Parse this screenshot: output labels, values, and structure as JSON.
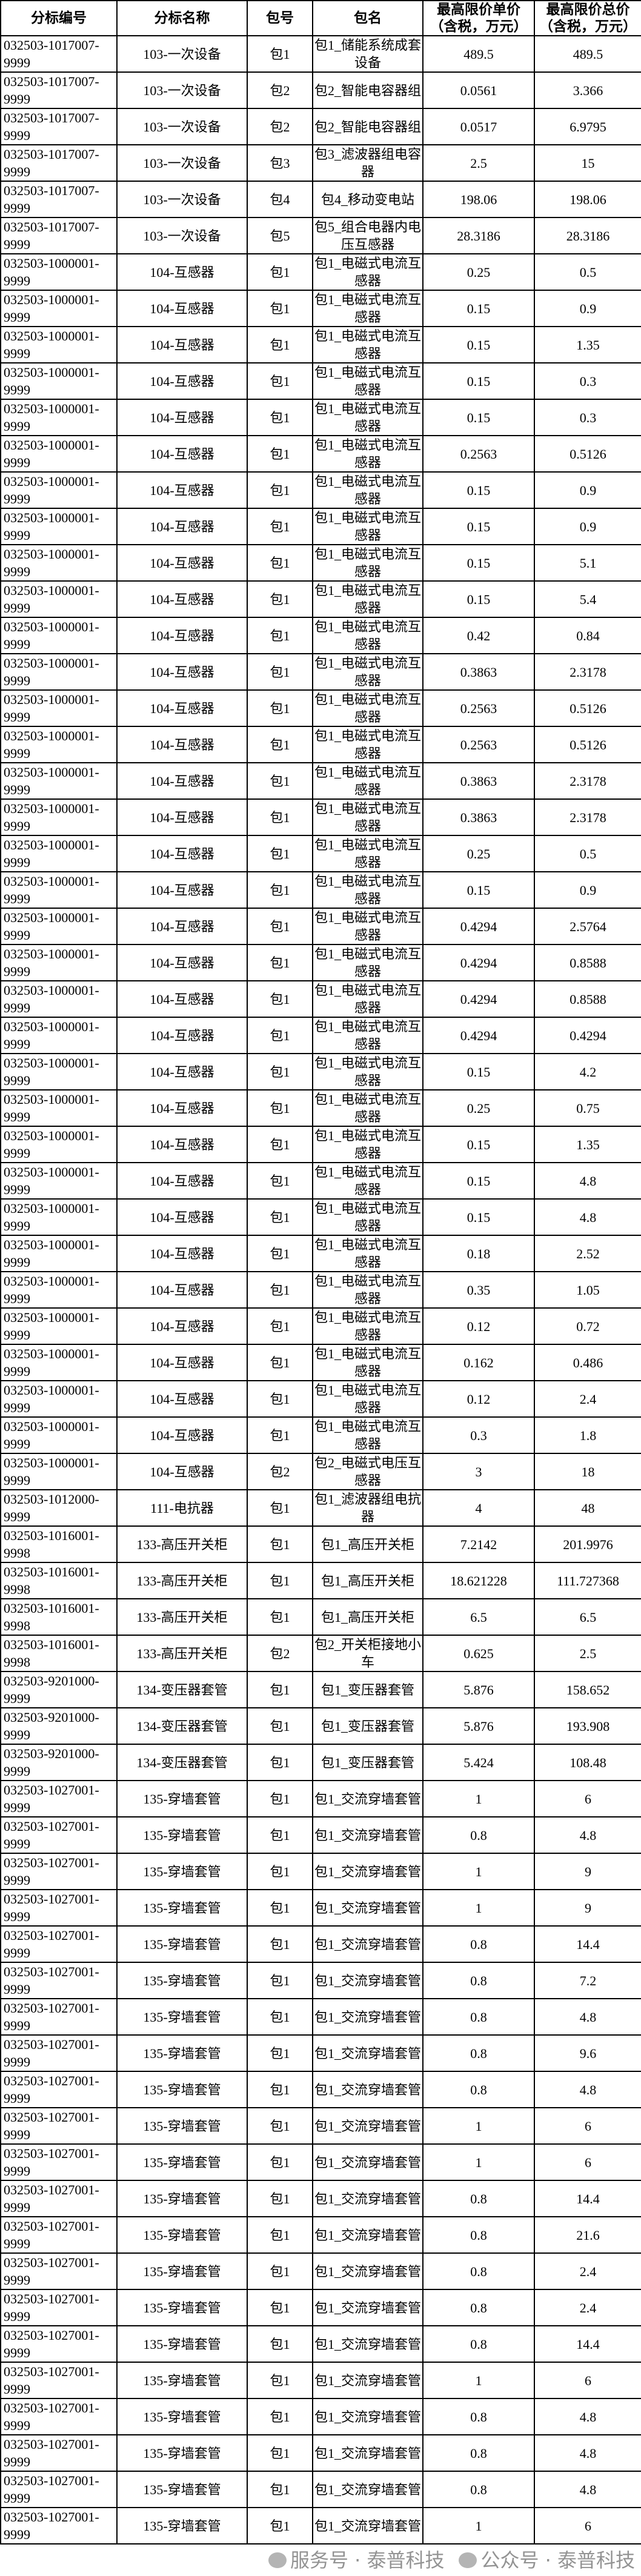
{
  "table": {
    "headers": [
      "分标编号",
      "分标名称",
      "包号",
      "包名",
      "最高限价单价（含税，万元）",
      "最高限价总价（含税，万元）"
    ],
    "rows": [
      [
        "032503-1017007-9999",
        "103-一次设备",
        "包1",
        "包1_储能系统成套设备",
        "489.5",
        "489.5"
      ],
      [
        "032503-1017007-9999",
        "103-一次设备",
        "包2",
        "包2_智能电容器组",
        "0.0561",
        "3.366"
      ],
      [
        "032503-1017007-9999",
        "103-一次设备",
        "包2",
        "包2_智能电容器组",
        "0.0517",
        "6.9795"
      ],
      [
        "032503-1017007-9999",
        "103-一次设备",
        "包3",
        "包3_滤波器组电容器",
        "2.5",
        "15"
      ],
      [
        "032503-1017007-9999",
        "103-一次设备",
        "包4",
        "包4_移动变电站",
        "198.06",
        "198.06"
      ],
      [
        "032503-1017007-9999",
        "103-一次设备",
        "包5",
        "包5_组合电器内电压互感器",
        "28.3186",
        "28.3186"
      ],
      [
        "032503-1000001-9999",
        "104-互感器",
        "包1",
        "包1_电磁式电流互感器",
        "0.25",
        "0.5"
      ],
      [
        "032503-1000001-9999",
        "104-互感器",
        "包1",
        "包1_电磁式电流互感器",
        "0.15",
        "0.9"
      ],
      [
        "032503-1000001-9999",
        "104-互感器",
        "包1",
        "包1_电磁式电流互感器",
        "0.15",
        "1.35"
      ],
      [
        "032503-1000001-9999",
        "104-互感器",
        "包1",
        "包1_电磁式电流互感器",
        "0.15",
        "0.3"
      ],
      [
        "032503-1000001-9999",
        "104-互感器",
        "包1",
        "包1_电磁式电流互感器",
        "0.15",
        "0.3"
      ],
      [
        "032503-1000001-9999",
        "104-互感器",
        "包1",
        "包1_电磁式电流互感器",
        "0.2563",
        "0.5126"
      ],
      [
        "032503-1000001-9999",
        "104-互感器",
        "包1",
        "包1_电磁式电流互感器",
        "0.15",
        "0.9"
      ],
      [
        "032503-1000001-9999",
        "104-互感器",
        "包1",
        "包1_电磁式电流互感器",
        "0.15",
        "0.9"
      ],
      [
        "032503-1000001-9999",
        "104-互感器",
        "包1",
        "包1_电磁式电流互感器",
        "0.15",
        "5.1"
      ],
      [
        "032503-1000001-9999",
        "104-互感器",
        "包1",
        "包1_电磁式电流互感器",
        "0.15",
        "5.4"
      ],
      [
        "032503-1000001-9999",
        "104-互感器",
        "包1",
        "包1_电磁式电流互感器",
        "0.42",
        "0.84"
      ],
      [
        "032503-1000001-9999",
        "104-互感器",
        "包1",
        "包1_电磁式电流互感器",
        "0.3863",
        "2.3178"
      ],
      [
        "032503-1000001-9999",
        "104-互感器",
        "包1",
        "包1_电磁式电流互感器",
        "0.2563",
        "0.5126"
      ],
      [
        "032503-1000001-9999",
        "104-互感器",
        "包1",
        "包1_电磁式电流互感器",
        "0.2563",
        "0.5126"
      ],
      [
        "032503-1000001-9999",
        "104-互感器",
        "包1",
        "包1_电磁式电流互感器",
        "0.3863",
        "2.3178"
      ],
      [
        "032503-1000001-9999",
        "104-互感器",
        "包1",
        "包1_电磁式电流互感器",
        "0.3863",
        "2.3178"
      ],
      [
        "032503-1000001-9999",
        "104-互感器",
        "包1",
        "包1_电磁式电流互感器",
        "0.25",
        "0.5"
      ],
      [
        "032503-1000001-9999",
        "104-互感器",
        "包1",
        "包1_电磁式电流互感器",
        "0.15",
        "0.9"
      ],
      [
        "032503-1000001-9999",
        "104-互感器",
        "包1",
        "包1_电磁式电流互感器",
        "0.4294",
        "2.5764"
      ],
      [
        "032503-1000001-9999",
        "104-互感器",
        "包1",
        "包1_电磁式电流互感器",
        "0.4294",
        "0.8588"
      ],
      [
        "032503-1000001-9999",
        "104-互感器",
        "包1",
        "包1_电磁式电流互感器",
        "0.4294",
        "0.8588"
      ],
      [
        "032503-1000001-9999",
        "104-互感器",
        "包1",
        "包1_电磁式电流互感器",
        "0.4294",
        "0.4294"
      ],
      [
        "032503-1000001-9999",
        "104-互感器",
        "包1",
        "包1_电磁式电流互感器",
        "0.15",
        "4.2"
      ],
      [
        "032503-1000001-9999",
        "104-互感器",
        "包1",
        "包1_电磁式电流互感器",
        "0.25",
        "0.75"
      ],
      [
        "032503-1000001-9999",
        "104-互感器",
        "包1",
        "包1_电磁式电流互感器",
        "0.15",
        "1.35"
      ],
      [
        "032503-1000001-9999",
        "104-互感器",
        "包1",
        "包1_电磁式电流互感器",
        "0.15",
        "4.8"
      ],
      [
        "032503-1000001-9999",
        "104-互感器",
        "包1",
        "包1_电磁式电流互感器",
        "0.15",
        "4.8"
      ],
      [
        "032503-1000001-9999",
        "104-互感器",
        "包1",
        "包1_电磁式电流互感器",
        "0.18",
        "2.52"
      ],
      [
        "032503-1000001-9999",
        "104-互感器",
        "包1",
        "包1_电磁式电流互感器",
        "0.35",
        "1.05"
      ],
      [
        "032503-1000001-9999",
        "104-互感器",
        "包1",
        "包1_电磁式电流互感器",
        "0.12",
        "0.72"
      ],
      [
        "032503-1000001-9999",
        "104-互感器",
        "包1",
        "包1_电磁式电流互感器",
        "0.162",
        "0.486"
      ],
      [
        "032503-1000001-9999",
        "104-互感器",
        "包1",
        "包1_电磁式电流互感器",
        "0.12",
        "2.4"
      ],
      [
        "032503-1000001-9999",
        "104-互感器",
        "包1",
        "包1_电磁式电流互感器",
        "0.3",
        "1.8"
      ],
      [
        "032503-1000001-9999",
        "104-互感器",
        "包2",
        "包2_电磁式电压互感器",
        "3",
        "18"
      ],
      [
        "032503-1012000-9999",
        "111-电抗器",
        "包1",
        "包1_滤波器组电抗器",
        "4",
        "48"
      ],
      [
        "032503-1016001-9998",
        "133-高压开关柜",
        "包1",
        "包1_高压开关柜",
        "7.2142",
        "201.9976"
      ],
      [
        "032503-1016001-9998",
        "133-高压开关柜",
        "包1",
        "包1_高压开关柜",
        "18.621228",
        "111.727368"
      ],
      [
        "032503-1016001-9998",
        "133-高压开关柜",
        "包1",
        "包1_高压开关柜",
        "6.5",
        "6.5"
      ],
      [
        "032503-1016001-9998",
        "133-高压开关柜",
        "包2",
        "包2_开关柜接地小车",
        "0.625",
        "2.5"
      ],
      [
        "032503-9201000-9999",
        "134-变压器套管",
        "包1",
        "包1_变压器套管",
        "5.876",
        "158.652"
      ],
      [
        "032503-9201000-9999",
        "134-变压器套管",
        "包1",
        "包1_变压器套管",
        "5.876",
        "193.908"
      ],
      [
        "032503-9201000-9999",
        "134-变压器套管",
        "包1",
        "包1_变压器套管",
        "5.424",
        "108.48"
      ],
      [
        "032503-1027001-9999",
        "135-穿墙套管",
        "包1",
        "包1_交流穿墙套管",
        "1",
        "6"
      ],
      [
        "032503-1027001-9999",
        "135-穿墙套管",
        "包1",
        "包1_交流穿墙套管",
        "0.8",
        "4.8"
      ],
      [
        "032503-1027001-9999",
        "135-穿墙套管",
        "包1",
        "包1_交流穿墙套管",
        "1",
        "9"
      ],
      [
        "032503-1027001-9999",
        "135-穿墙套管",
        "包1",
        "包1_交流穿墙套管",
        "1",
        "9"
      ],
      [
        "032503-1027001-9999",
        "135-穿墙套管",
        "包1",
        "包1_交流穿墙套管",
        "0.8",
        "14.4"
      ],
      [
        "032503-1027001-9999",
        "135-穿墙套管",
        "包1",
        "包1_交流穿墙套管",
        "0.8",
        "7.2"
      ],
      [
        "032503-1027001-9999",
        "135-穿墙套管",
        "包1",
        "包1_交流穿墙套管",
        "0.8",
        "4.8"
      ],
      [
        "032503-1027001-9999",
        "135-穿墙套管",
        "包1",
        "包1_交流穿墙套管",
        "0.8",
        "9.6"
      ],
      [
        "032503-1027001-9999",
        "135-穿墙套管",
        "包1",
        "包1_交流穿墙套管",
        "0.8",
        "4.8"
      ],
      [
        "032503-1027001-9999",
        "135-穿墙套管",
        "包1",
        "包1_交流穿墙套管",
        "1",
        "6"
      ],
      [
        "032503-1027001-9999",
        "135-穿墙套管",
        "包1",
        "包1_交流穿墙套管",
        "1",
        "6"
      ],
      [
        "032503-1027001-9999",
        "135-穿墙套管",
        "包1",
        "包1_交流穿墙套管",
        "0.8",
        "14.4"
      ],
      [
        "032503-1027001-9999",
        "135-穿墙套管",
        "包1",
        "包1_交流穿墙套管",
        "0.8",
        "21.6"
      ],
      [
        "032503-1027001-9999",
        "135-穿墙套管",
        "包1",
        "包1_交流穿墙套管",
        "0.8",
        "2.4"
      ],
      [
        "032503-1027001-9999",
        "135-穿墙套管",
        "包1",
        "包1_交流穿墙套管",
        "0.8",
        "2.4"
      ],
      [
        "032503-1027001-9999",
        "135-穿墙套管",
        "包1",
        "包1_交流穿墙套管",
        "0.8",
        "14.4"
      ],
      [
        "032503-1027001-9999",
        "135-穿墙套管",
        "包1",
        "包1_交流穿墙套管",
        "1",
        "6"
      ],
      [
        "032503-1027001-9999",
        "135-穿墙套管",
        "包1",
        "包1_交流穿墙套管",
        "0.8",
        "4.8"
      ],
      [
        "032503-1027001-9999",
        "135-穿墙套管",
        "包1",
        "包1_交流穿墙套管",
        "0.8",
        "4.8"
      ],
      [
        "032503-1027001-9999",
        "135-穿墙套管",
        "包1",
        "包1_交流穿墙套管",
        "0.8",
        "4.8"
      ],
      [
        "032503-1027001-9999",
        "135-穿墙套管",
        "包1",
        "包1_交流穿墙套管",
        "1",
        "6"
      ]
    ]
  },
  "watermark": {
    "text_a": "服务号 · 泰普科技",
    "text_b": "公众号 · 泰普科技",
    "icon": "wechat-icon"
  }
}
